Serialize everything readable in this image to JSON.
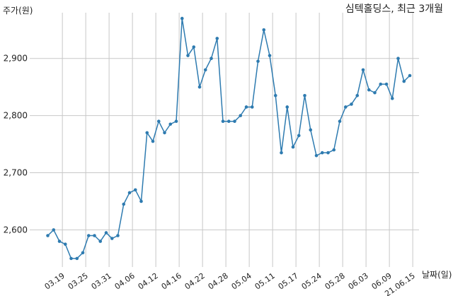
{
  "chart_data": {
    "type": "line",
    "title": "심텍홀딩스, 최근 3개월",
    "ylabel": "주가(원)",
    "xlabel": "날짜(일)",
    "ylim": [
      2535,
      2980
    ],
    "yticks": [
      2600,
      2700,
      2800,
      2900
    ],
    "ytick_labels": [
      "2,600",
      "2,700",
      "2,800",
      "2,900"
    ],
    "xtick_labels": [
      "03.19",
      "03.25",
      "03.31",
      "04.06",
      "04.12",
      "04.16",
      "04.22",
      "04.28",
      "05.04",
      "05.11",
      "05.17",
      "05.24",
      "05.28",
      "06.03",
      "06.09",
      "21.06.15"
    ],
    "xtick_indices": [
      2.5,
      6.5,
      10.5,
      14.5,
      18.5,
      22.5,
      26.5,
      30.5,
      34.5,
      38.5,
      42.5,
      46.5,
      50.5,
      54.5,
      58.5,
      62.5
    ],
    "grid": true,
    "color": "#2e7bb0",
    "series": [
      {
        "values": [
          2590,
          2600,
          2580,
          2575,
          2550,
          2550,
          2560,
          2590,
          2590,
          2580,
          2595,
          2585,
          2590,
          2645,
          2665,
          2670,
          2650,
          2770,
          2755,
          2790,
          2770,
          2785,
          2790,
          2970,
          2905,
          2920,
          2850,
          2880,
          2900,
          2935,
          2790,
          2790,
          2790,
          2800,
          2815,
          2815,
          2895,
          2950,
          2905,
          2835,
          2735,
          2815,
          2745,
          2765,
          2835,
          2775,
          2730,
          2735,
          2735,
          2740,
          2790,
          2815,
          2820,
          2835,
          2880,
          2845,
          2840,
          2855,
          2855,
          2830,
          2900,
          2860,
          2870
        ]
      }
    ]
  }
}
